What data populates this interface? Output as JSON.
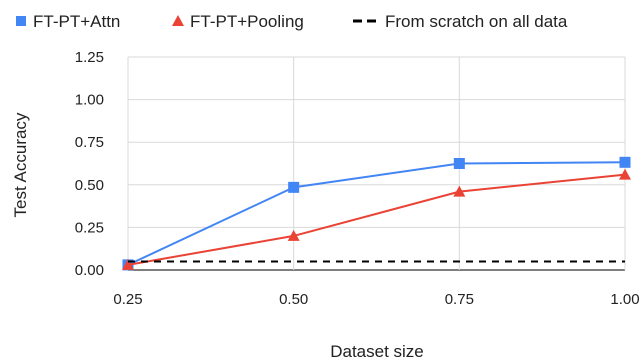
{
  "chart_data": {
    "type": "line",
    "title": "",
    "xlabel": "Dataset size",
    "ylabel": "Test Accuracy",
    "x": [
      0.25,
      0.5,
      0.75,
      1.0
    ],
    "x_tick_labels": [
      "0.25",
      "0.50",
      "0.75",
      "1.00"
    ],
    "y_tick_labels": [
      "0.00",
      "0.25",
      "0.50",
      "0.75",
      "1.00",
      "1.25"
    ],
    "xlim": [
      0.25,
      1.0
    ],
    "ylim": [
      0,
      1.25
    ],
    "grid": true,
    "legend_position": "top",
    "series": [
      {
        "name": "FT-PT+Attn",
        "values": [
          0.03,
          0.485,
          0.625,
          0.632
        ],
        "color": "#4285f4",
        "marker": "square",
        "line_style": "solid"
      },
      {
        "name": "FT-PT+Pooling",
        "values": [
          0.03,
          0.2,
          0.46,
          0.56
        ],
        "color": "#ea4335",
        "marker": "triangle",
        "line_style": "solid"
      },
      {
        "name": "From scratch on all data",
        "values": [
          0.05,
          0.05,
          0.05,
          0.05
        ],
        "color": "#000000",
        "marker": "none",
        "line_style": "dashed"
      }
    ]
  }
}
